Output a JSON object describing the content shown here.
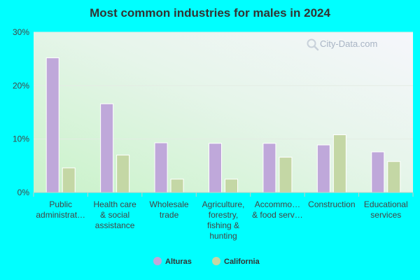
{
  "colors": {
    "background": "#00ffff",
    "series_alturas": "#bfa8da",
    "series_california": "#c4d7a5"
  },
  "watermark": {
    "text": "City-Data.com",
    "icon": "magnifier-icon"
  },
  "chart_data": {
    "type": "bar",
    "title": "Most common industries for males in 2024",
    "xlabel": "",
    "ylabel": "",
    "ylim": [
      0,
      30
    ],
    "yticks": [
      "0%",
      "10%",
      "20%",
      "30%"
    ],
    "y_tick_values": [
      0,
      10,
      20,
      30
    ],
    "grid": true,
    "legend_position": "bottom-center",
    "categories": [
      [
        "Public",
        "administrat…"
      ],
      [
        "Health care",
        "& social",
        "assistance"
      ],
      [
        "Wholesale",
        "trade"
      ],
      [
        "Agriculture,",
        "forestry,",
        "fishing &",
        "hunting"
      ],
      [
        "Accommo…",
        "& food serv…"
      ],
      [
        "Construction"
      ],
      [
        "Educational",
        "services"
      ]
    ],
    "series": [
      {
        "name": "Alturas",
        "values": [
          25.2,
          16.6,
          9.3,
          9.2,
          9.2,
          8.9,
          7.6
        ]
      },
      {
        "name": "California",
        "values": [
          4.6,
          7.0,
          2.5,
          2.5,
          6.6,
          10.8,
          5.8
        ]
      }
    ]
  }
}
